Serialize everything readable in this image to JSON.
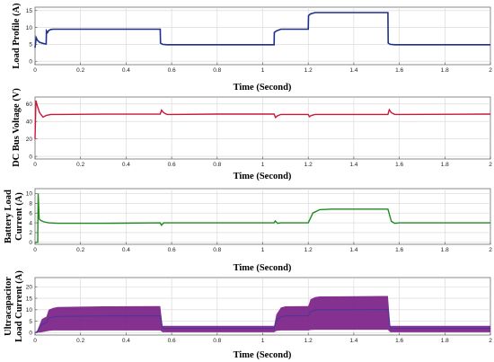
{
  "figure": {
    "colors": {
      "load": "#1f2f8c",
      "bus": "#c8183a",
      "battery": "#1f8a1f",
      "uc_band": "#7a1f86",
      "uc_mean": "#3a3aa0",
      "uc_spike": "#d21bb0"
    }
  },
  "chart_data": [
    {
      "type": "line",
      "title": "",
      "xlabel": "Time (Second)",
      "ylabel": "Load Profile (A)",
      "xlim": [
        0,
        2
      ],
      "ylim": [
        -1,
        16
      ],
      "xticks": [
        "0",
        "0.2",
        "0.4",
        "0.6",
        "0.8",
        "1",
        "1.2",
        "1.4",
        "1.6",
        "1.8",
        "2"
      ],
      "yticks": [
        "0",
        "5",
        "10",
        "15"
      ],
      "grid": true,
      "series": [
        {
          "color": "#1f2f8c",
          "x": [
            0,
            0.005,
            0.01,
            0.02,
            0.04,
            0.049,
            0.05,
            0.055,
            0.06,
            0.07,
            0.08,
            0.55,
            0.551,
            0.56,
            0.58,
            1.05,
            1.051,
            1.06,
            1.08,
            1.2,
            1.201,
            1.21,
            1.23,
            1.55,
            1.551,
            1.56,
            1.58,
            2.0
          ],
          "y": [
            4.0,
            7.0,
            6.3,
            5.6,
            5.2,
            5.1,
            9.0,
            8.5,
            9.1,
            9.4,
            9.5,
            9.5,
            5.4,
            5.0,
            4.9,
            4.9,
            8.5,
            9.0,
            9.5,
            9.5,
            13.5,
            14.0,
            14.4,
            14.4,
            5.4,
            5.0,
            4.9,
            4.9
          ]
        }
      ]
    },
    {
      "type": "line",
      "title": "",
      "xlabel": "Time (Second)",
      "ylabel": "DC Bus Voltage (V)",
      "xlim": [
        0,
        2
      ],
      "ylim": [
        -3,
        68
      ],
      "xticks": [
        "0",
        "0.2",
        "0.4",
        "0.6",
        "0.8",
        "1",
        "1.2",
        "1.4",
        "1.6",
        "1.8",
        "2"
      ],
      "yticks": [
        "0",
        "20",
        "40",
        "60"
      ],
      "grid": true,
      "series": [
        {
          "color": "#c8183a",
          "x": [
            0,
            0.004,
            0.01,
            0.02,
            0.035,
            0.05,
            0.07,
            0.1,
            0.3,
            0.55,
            0.556,
            0.565,
            0.58,
            0.6,
            0.8,
            1.05,
            1.056,
            1.065,
            1.08,
            1.1,
            1.2,
            1.205,
            1.215,
            1.23,
            1.3,
            1.55,
            1.556,
            1.565,
            1.58,
            1.6,
            2.0
          ],
          "y": [
            20,
            64,
            58,
            50,
            45,
            47,
            48,
            48,
            48.3,
            48.5,
            53,
            50,
            48,
            48,
            48.5,
            48.5,
            44.5,
            46.5,
            48,
            48,
            48,
            45.5,
            47,
            48,
            48,
            48,
            53.5,
            50,
            48,
            48,
            48.5
          ]
        }
      ]
    },
    {
      "type": "line",
      "title": "",
      "xlabel": "Time (Second)",
      "ylabel": "Battery Load Current (A)",
      "xlim": [
        0,
        2
      ],
      "ylim": [
        -0.4,
        11
      ],
      "xticks": [
        "0",
        "0.2",
        "0.4",
        "0.6",
        "0.8",
        "1",
        "1.2",
        "1.4",
        "1.6",
        "1.8",
        "2"
      ],
      "yticks": [
        "0",
        "2",
        "4",
        "6",
        "8",
        "10"
      ],
      "grid": true,
      "series": [
        {
          "color": "#1f8a1f",
          "x": [
            0,
            0.005,
            0.012,
            0.014,
            0.018,
            0.025,
            0.04,
            0.06,
            0.1,
            0.3,
            0.55,
            0.555,
            0.565,
            0.58,
            0.8,
            1.05,
            1.055,
            1.065,
            1.08,
            1.2,
            1.22,
            1.25,
            1.3,
            1.55,
            1.565,
            1.58,
            1.6,
            2.0
          ],
          "y": [
            0,
            0,
            0,
            10,
            4.8,
            4.5,
            4.2,
            4.0,
            3.9,
            3.9,
            4.0,
            3.5,
            4.0,
            4.0,
            4.0,
            4.0,
            4.4,
            3.9,
            4.0,
            4.0,
            6.0,
            6.7,
            6.8,
            6.8,
            4.3,
            3.9,
            4.0,
            4.0
          ]
        }
      ]
    },
    {
      "type": "area",
      "title": "",
      "xlabel": "Time (Second)",
      "ylabel": "Ultracapacitor Load Current (A)",
      "xlim": [
        0,
        2
      ],
      "ylim": [
        -1,
        24
      ],
      "xticks": [
        "0",
        "0.2",
        "0.4",
        "0.6",
        "0.8",
        "1",
        "1.2",
        "1.4",
        "1.6",
        "1.8",
        "2"
      ],
      "yticks": [
        "0",
        "5",
        "10",
        "15",
        "20"
      ],
      "grid": true,
      "series": [
        {
          "color": "#7a1f86",
          "x": [
            0,
            0.01,
            0.03,
            0.05,
            0.06,
            0.08,
            0.1,
            0.3,
            0.55,
            0.56,
            0.8,
            1.05,
            1.06,
            1.08,
            1.1,
            1.2,
            1.21,
            1.23,
            1.25,
            1.55,
            1.56,
            1.8,
            2.0
          ],
          "y_upper": [
            0,
            1,
            6,
            7,
            10,
            10.8,
            11.2,
            11.5,
            11.6,
            3.0,
            3.0,
            3.0,
            8.0,
            11,
            11.5,
            11.6,
            14.5,
            15.5,
            15.8,
            16,
            3.0,
            3.0,
            3.0
          ],
          "y_lower": [
            0,
            0,
            0.2,
            0.6,
            0.8,
            1.0,
            1.0,
            1.0,
            1.0,
            0.2,
            0.2,
            0.2,
            0.8,
            1.0,
            1.0,
            1.0,
            1.2,
            1.3,
            1.3,
            1.3,
            0.2,
            0.2,
            0.2
          ]
        }
      ]
    }
  ]
}
